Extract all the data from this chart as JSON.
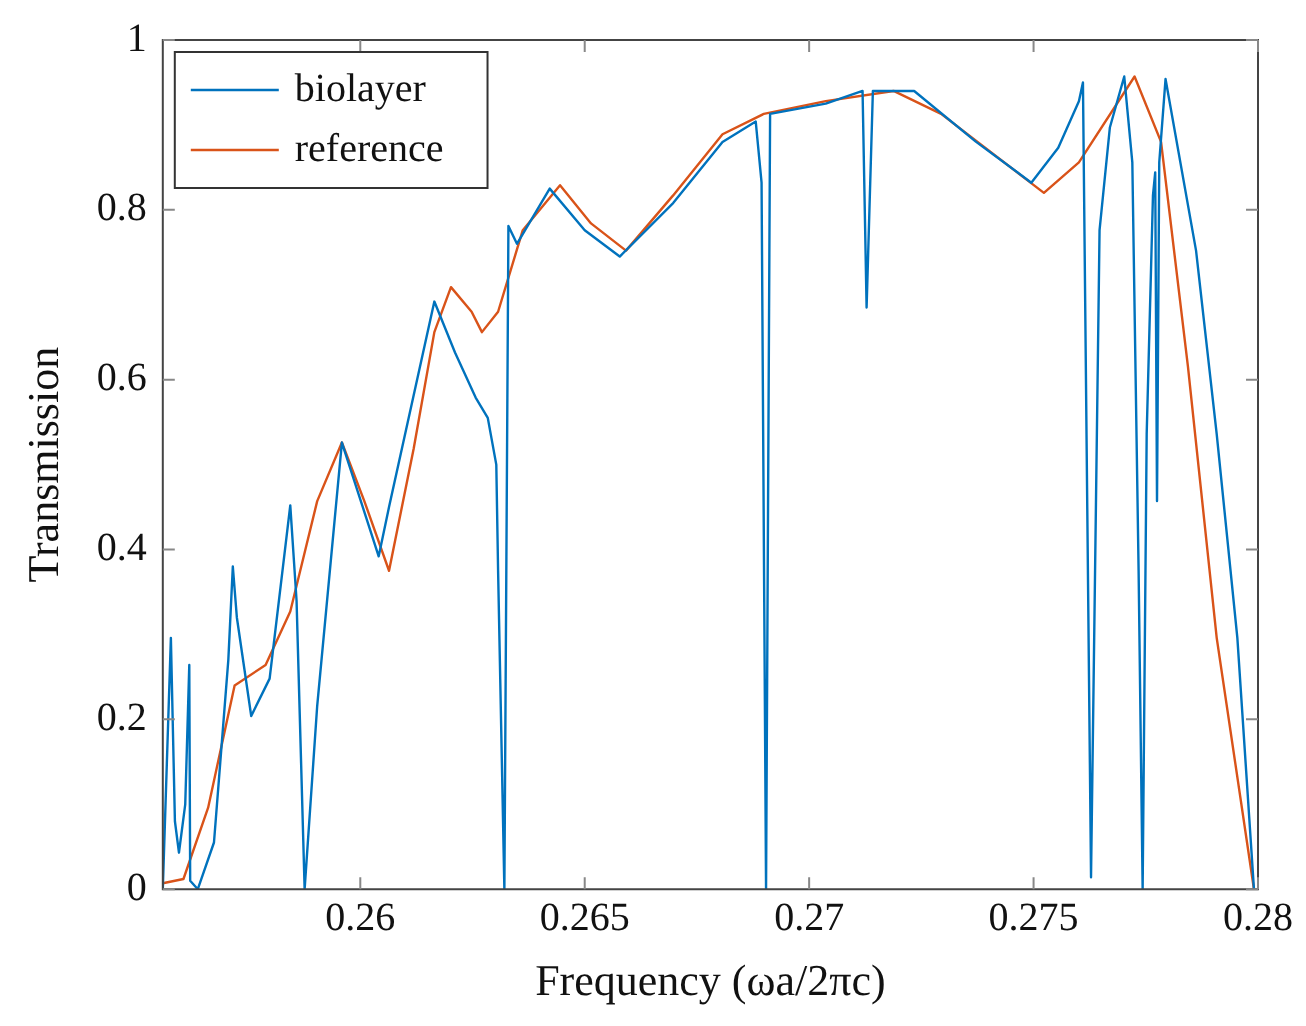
{
  "chart_data": {
    "type": "line",
    "xlabel": "Frequency (ωa/2πc)",
    "ylabel": "Transmission",
    "xlim": [
      0.2556,
      0.28
    ],
    "xticks": [
      0.26,
      0.265,
      0.27,
      0.275,
      0.28
    ],
    "ylim": [
      0,
      1
    ],
    "yticks": [
      0,
      0.2,
      0.4,
      0.6,
      0.8,
      1
    ],
    "grid": false,
    "legend": "top left",
    "marker": "none",
    "line_style": "solid",
    "series": [
      {
        "name": "biolayer",
        "color": "#0072bd",
        "x": [
          0.2556,
          0.25578,
          0.25587,
          0.25596,
          0.2561,
          0.25619,
          0.25621,
          0.25638,
          0.25674,
          0.25706,
          0.25716,
          0.25725,
          0.25757,
          0.25798,
          0.25844,
          0.25858,
          0.25876,
          0.25904,
          0.25959,
          0.26041,
          0.26064,
          0.26165,
          0.26211,
          0.26257,
          0.26284,
          0.26303,
          0.26307,
          0.26321,
          0.2633,
          0.26349,
          0.26422,
          0.265,
          0.26578,
          0.26697,
          0.26807,
          0.26881,
          0.26894,
          0.26904,
          0.26913,
          0.27037,
          0.27119,
          0.27128,
          0.27142,
          0.27188,
          0.27234,
          0.27372,
          0.27495,
          0.27555,
          0.27601,
          0.2761,
          0.27628,
          0.27647,
          0.2767,
          0.27702,
          0.2772,
          0.27734,
          0.27743,
          0.27752,
          0.27766,
          0.27771,
          0.27775,
          0.2778,
          0.27794,
          0.27862,
          0.27908,
          0.27954,
          0.27991
        ],
        "values": [
          0,
          0.296,
          0.08,
          0.043,
          0.1,
          0.264,
          0.01,
          0,
          0.055,
          0.27,
          0.38,
          0.32,
          0.204,
          0.248,
          0.452,
          0.34,
          0,
          0.216,
          0.526,
          0.392,
          0.45,
          0.692,
          0.632,
          0.579,
          0.555,
          0.5,
          0.375,
          0,
          0.781,
          0.76,
          0.825,
          0.776,
          0.745,
          0.808,
          0.88,
          0.904,
          0.832,
          0,
          0.913,
          0.925,
          0.94,
          0.685,
          0.94,
          0.94,
          0.94,
          0.88,
          0.832,
          0.873,
          0.928,
          0.95,
          0.014,
          0.776,
          0.897,
          0.957,
          0.856,
          0.375,
          0,
          0.536,
          0.817,
          0.844,
          0.457,
          0.856,
          0.954,
          0.752,
          0.536,
          0.296,
          0
        ]
      },
      {
        "name": "reference",
        "color": "#d95319",
        "x": [
          0.2556,
          0.25606,
          0.25661,
          0.2572,
          0.25789,
          0.25844,
          0.25904,
          0.25959,
          0.26009,
          0.26064,
          0.26119,
          0.26165,
          0.26202,
          0.26248,
          0.26271,
          0.26307,
          0.26362,
          0.26445,
          0.26514,
          0.26592,
          0.26697,
          0.26807,
          0.26899,
          0.27037,
          0.27188,
          0.27294,
          0.27523,
          0.27601,
          0.27725,
          0.27784,
          0.27844,
          0.27908,
          0.27991
        ],
        "values": [
          0.007,
          0.012,
          0.096,
          0.24,
          0.264,
          0.327,
          0.457,
          0.526,
          0.457,
          0.375,
          0.519,
          0.656,
          0.709,
          0.68,
          0.656,
          0.68,
          0.776,
          0.829,
          0.784,
          0.752,
          0.817,
          0.889,
          0.913,
          0.928,
          0.94,
          0.913,
          0.82,
          0.856,
          0.957,
          0.88,
          0.615,
          0.296,
          0
        ]
      }
    ]
  }
}
